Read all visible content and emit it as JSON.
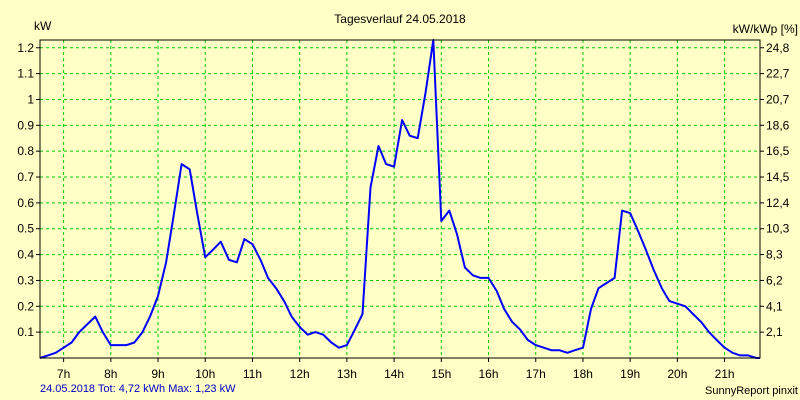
{
  "chart_data": {
    "type": "line",
    "title": "Tagesverlauf 24.05.2018",
    "ylabel": "kW",
    "ylabel_right": "kW/kWp [%]",
    "x_ticks": [
      "7h",
      "8h",
      "9h",
      "10h",
      "11h",
      "12h",
      "13h",
      "14h",
      "15h",
      "16h",
      "17h",
      "18h",
      "19h",
      "20h",
      "21h"
    ],
    "y_ticks": [
      "0.1",
      "0.2",
      "0.3",
      "0.4",
      "0.5",
      "0.6",
      "0.7",
      "0.8",
      "0.9",
      "1",
      "1.1",
      "1.2"
    ],
    "y2_ticks": [
      "2,1",
      "4,1",
      "6,2",
      "8,3",
      "10,3",
      "12,4",
      "14,5",
      "16,5",
      "18,6",
      "20,7",
      "22,7",
      "24,8"
    ],
    "xlim": [
      6.5,
      21.75
    ],
    "ylim": [
      0,
      1.23
    ],
    "grid": true,
    "line_color": "#0000ff",
    "grid_color": "#00cc00",
    "series": [
      {
        "x": [
          6.5,
          6.67,
          6.83,
          7.0,
          7.17,
          7.33,
          7.5,
          7.67,
          7.83,
          8.0,
          8.17,
          8.33,
          8.5,
          8.67,
          8.83,
          9.0,
          9.17,
          9.33,
          9.5,
          9.67,
          9.83,
          10.0,
          10.17,
          10.33,
          10.5,
          10.67,
          10.83,
          11.0,
          11.17,
          11.33,
          11.5,
          11.67,
          11.83,
          12.0,
          12.17,
          12.33,
          12.5,
          12.67,
          12.83,
          13.0,
          13.17,
          13.33,
          13.5,
          13.67,
          13.83,
          14.0,
          14.17,
          14.33,
          14.5,
          14.67,
          14.83,
          15.0,
          15.17,
          15.33,
          15.5,
          15.67,
          15.83,
          16.0,
          16.17,
          16.33,
          16.5,
          16.67,
          16.83,
          17.0,
          17.17,
          17.33,
          17.5,
          17.67,
          17.83,
          18.0,
          18.17,
          18.33,
          18.5,
          18.67,
          18.83,
          19.0,
          19.17,
          19.33,
          19.5,
          19.67,
          19.83,
          20.0,
          20.17,
          20.33,
          20.5,
          20.67,
          20.83,
          21.0,
          21.17,
          21.33,
          21.5,
          21.67,
          21.75
        ],
        "values": [
          0.0,
          0.01,
          0.02,
          0.04,
          0.06,
          0.1,
          0.13,
          0.16,
          0.1,
          0.05,
          0.05,
          0.05,
          0.06,
          0.1,
          0.16,
          0.24,
          0.37,
          0.55,
          0.75,
          0.73,
          0.56,
          0.39,
          0.42,
          0.45,
          0.38,
          0.37,
          0.46,
          0.44,
          0.38,
          0.31,
          0.27,
          0.22,
          0.16,
          0.12,
          0.09,
          0.1,
          0.09,
          0.06,
          0.04,
          0.05,
          0.11,
          0.17,
          0.66,
          0.82,
          0.75,
          0.74,
          0.92,
          0.86,
          0.85,
          1.03,
          1.23,
          0.53,
          0.57,
          0.48,
          0.35,
          0.32,
          0.31,
          0.31,
          0.26,
          0.19,
          0.14,
          0.11,
          0.07,
          0.05,
          0.04,
          0.03,
          0.03,
          0.02,
          0.03,
          0.04,
          0.19,
          0.27,
          0.29,
          0.31,
          0.57,
          0.56,
          0.49,
          0.42,
          0.34,
          0.27,
          0.22,
          0.21,
          0.2,
          0.17,
          0.14,
          0.1,
          0.07,
          0.04,
          0.02,
          0.01,
          0.01,
          0.0,
          0.0
        ]
      }
    ]
  },
  "footer": {
    "stats": "24.05.2018 Tot: 4,72 kWh Max: 1,23 kW",
    "credit": "SunnyReport pinxit",
    "stats_color": "#0000cc"
  }
}
